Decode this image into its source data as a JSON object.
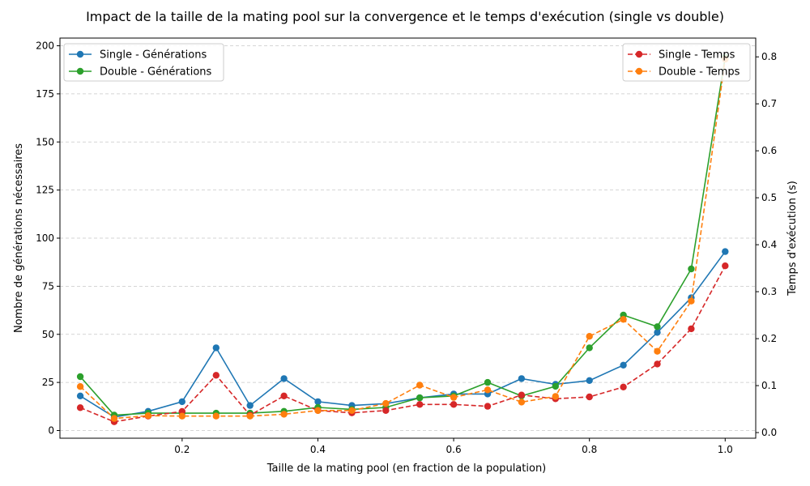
{
  "chart_data": {
    "type": "line",
    "title": "Impact de la taille de la mating pool sur la convergence et le temps d'exécution (single vs double)",
    "xlabel": "Taille de la mating pool (en fraction de la population)",
    "ylabel_left": "Nombre de générations nécessaires",
    "ylabel_right": "Temps d'exécution (s)",
    "xlim": [
      0.02,
      1.045
    ],
    "ylim_left": [
      -4,
      204
    ],
    "ylim_right": [
      -0.012,
      0.84
    ],
    "x_ticks": [
      "0.2",
      "0.4",
      "0.6",
      "0.8",
      "1.0"
    ],
    "y_left_ticks": [
      "0",
      "25",
      "50",
      "75",
      "100",
      "125",
      "150",
      "175",
      "200"
    ],
    "y_right_ticks": [
      "0.0",
      "0.1",
      "0.2",
      "0.3",
      "0.4",
      "0.5",
      "0.6",
      "0.7",
      "0.8"
    ],
    "grid": "horizontal dashed (left axis)",
    "x": [
      0.05,
      0.1,
      0.15,
      0.2,
      0.25,
      0.3,
      0.35,
      0.4,
      0.45,
      0.5,
      0.55,
      0.6,
      0.65,
      0.7,
      0.75,
      0.8,
      0.85,
      0.9,
      0.95,
      1.0
    ],
    "series": [
      {
        "name": "Single - Générations",
        "axis": "left",
        "style": "solid",
        "color": "#1f77b4",
        "values": [
          18,
          7,
          10,
          15,
          43,
          13,
          27,
          15,
          13,
          14,
          17,
          19,
          19,
          27,
          24,
          26,
          34,
          51,
          69,
          93
        ]
      },
      {
        "name": "Double - Générations",
        "axis": "left",
        "style": "solid",
        "color": "#2ca02c",
        "values": [
          28,
          8,
          9,
          9,
          9,
          9,
          10,
          12,
          11,
          12,
          17,
          18,
          25,
          18,
          23,
          43,
          60,
          54,
          84,
          194
        ]
      },
      {
        "name": "Single - Temps",
        "axis": "right",
        "style": "dashed",
        "color": "#d62728",
        "values": [
          0.053,
          0.023,
          0.035,
          0.045,
          0.122,
          0.037,
          0.078,
          0.047,
          0.042,
          0.047,
          0.06,
          0.06,
          0.056,
          0.08,
          0.072,
          0.076,
          0.097,
          0.146,
          0.221,
          0.355
        ]
      },
      {
        "name": "Double - Temps",
        "axis": "right",
        "style": "dashed",
        "color": "#ff7f0e",
        "values": [
          0.098,
          0.03,
          0.036,
          0.035,
          0.035,
          0.035,
          0.039,
          0.047,
          0.047,
          0.062,
          0.101,
          0.075,
          0.091,
          0.065,
          0.077,
          0.205,
          0.241,
          0.173,
          0.28,
          0.795
        ]
      }
    ],
    "legend_left": {
      "placement": "top-left",
      "entries": [
        "Single - Générations",
        "Double - Générations"
      ]
    },
    "legend_right": {
      "placement": "top-right",
      "entries": [
        "Single - Temps",
        "Double - Temps"
      ]
    }
  }
}
